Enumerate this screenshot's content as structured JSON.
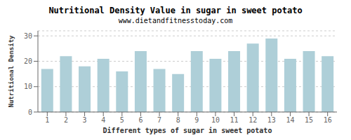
{
  "chart_data": {
    "type": "bar",
    "title": "Nutritional Density Value in sugar in sweet potato",
    "subtitle": "www.dietandfitnesstoday.com",
    "xlabel": "Different types of sugar in sweet potato",
    "ylabel": "Nutritional Density",
    "categories": [
      "1",
      "2",
      "3",
      "4",
      "5",
      "6",
      "7",
      "8",
      "9",
      "10",
      "11",
      "12",
      "13",
      "14",
      "15",
      "16"
    ],
    "values": [
      17,
      22,
      18,
      21,
      16,
      24,
      17,
      15,
      24,
      21,
      24,
      27,
      29,
      21,
      24,
      22
    ],
    "color": "#aecfd8",
    "ylim": [
      0,
      32
    ],
    "yticks": [
      0,
      10,
      20,
      30
    ],
    "grid": true
  }
}
